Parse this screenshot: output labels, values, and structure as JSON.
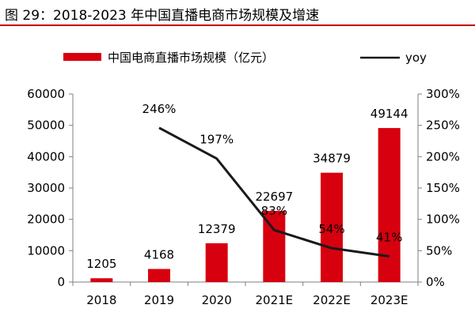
{
  "chart_title": "图 29：2018-2023 年中国直播电商市场规模及增速",
  "colors": {
    "bar": "#d7000f",
    "line": "#1a1a1a",
    "rule": "#c00000",
    "axis": "#7f7f7f"
  },
  "chart_data": {
    "type": "bar",
    "title": "图 29：2018-2023 年中国直播电商市场规模及增速",
    "categories": [
      "2018",
      "2019",
      "2020",
      "2021E",
      "2022E",
      "2023E"
    ],
    "series": [
      {
        "name": "中国电商直播市场规模（亿元）",
        "type": "bar",
        "axis": "left",
        "values": [
          1205,
          4168,
          12379,
          22697,
          34879,
          49144
        ],
        "labels": [
          "1205",
          "4168",
          "12379",
          "22697",
          "34879",
          "49144"
        ]
      },
      {
        "name": "yoy",
        "type": "line",
        "axis": "right",
        "values": [
          null,
          246,
          197,
          83,
          54,
          41
        ],
        "labels": [
          "",
          "246%",
          "197%",
          "83%",
          "54%",
          "41%"
        ]
      }
    ],
    "ylim": [
      0,
      60000
    ],
    "yticks": [
      "0",
      "10000",
      "20000",
      "30000",
      "40000",
      "50000",
      "60000"
    ],
    "y2lim": [
      0,
      300
    ],
    "y2ticks": [
      "0%",
      "50%",
      "100%",
      "150%",
      "200%",
      "250%",
      "300%"
    ],
    "legend_position": "top",
    "grid": false
  }
}
